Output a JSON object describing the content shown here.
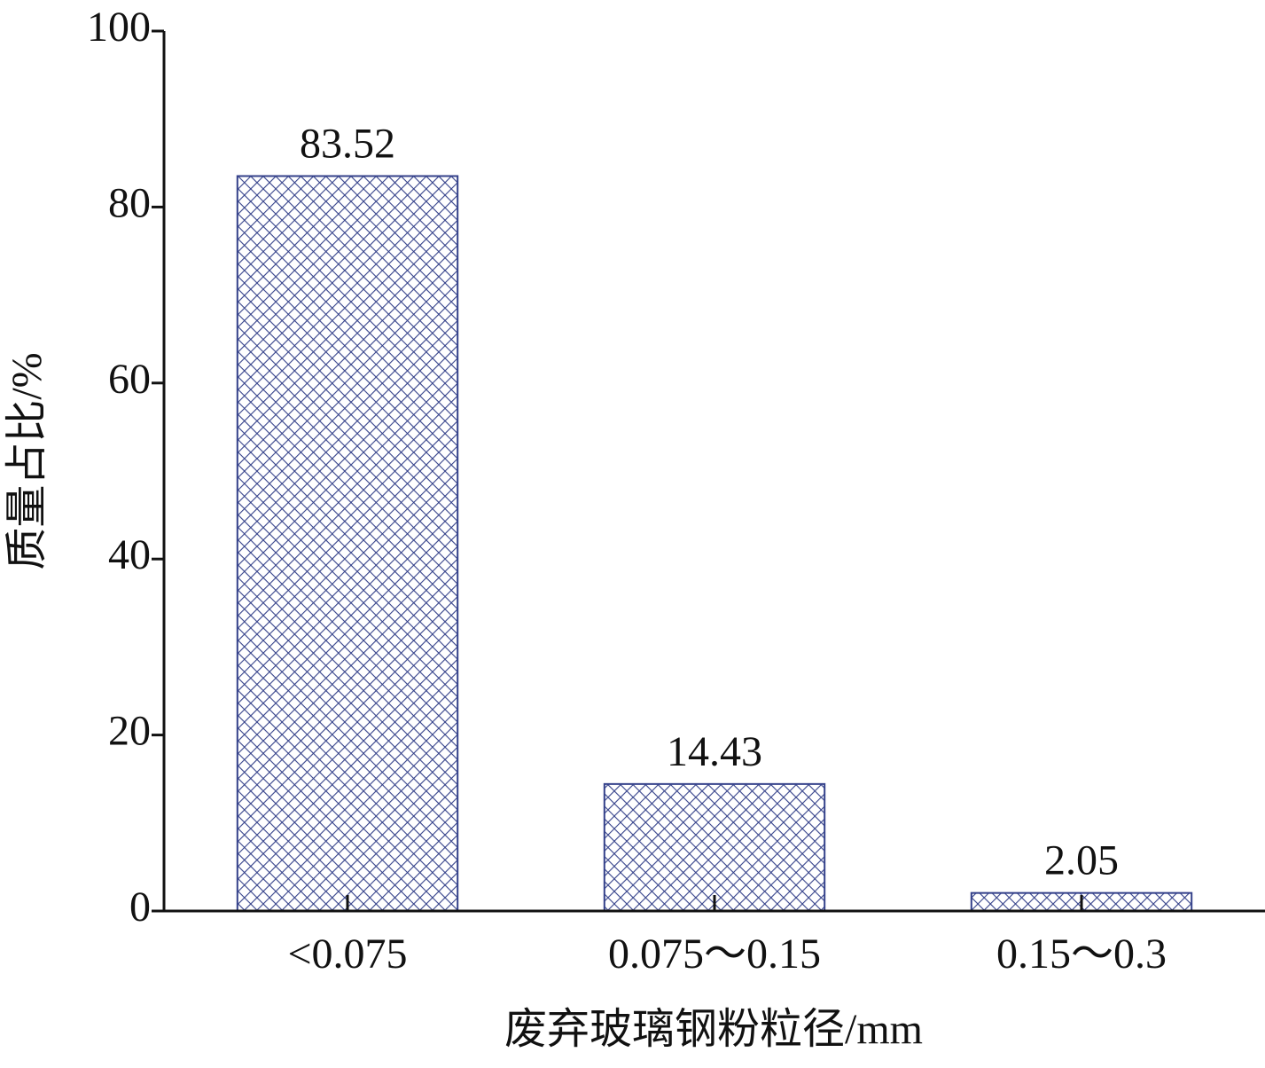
{
  "chart_data": {
    "type": "bar",
    "x_label": "废弃玻璃钢粉粒径/mm",
    "y_label": "质量占比/%",
    "categories": [
      "<0.075",
      "0.075～0.15",
      "0.15～0.3"
    ],
    "values": [
      83.52,
      14.43,
      2.05
    ],
    "color": "#34418a",
    "ylim": [
      0,
      100
    ],
    "yticks": [
      0,
      20,
      40,
      60,
      80,
      100
    ]
  }
}
